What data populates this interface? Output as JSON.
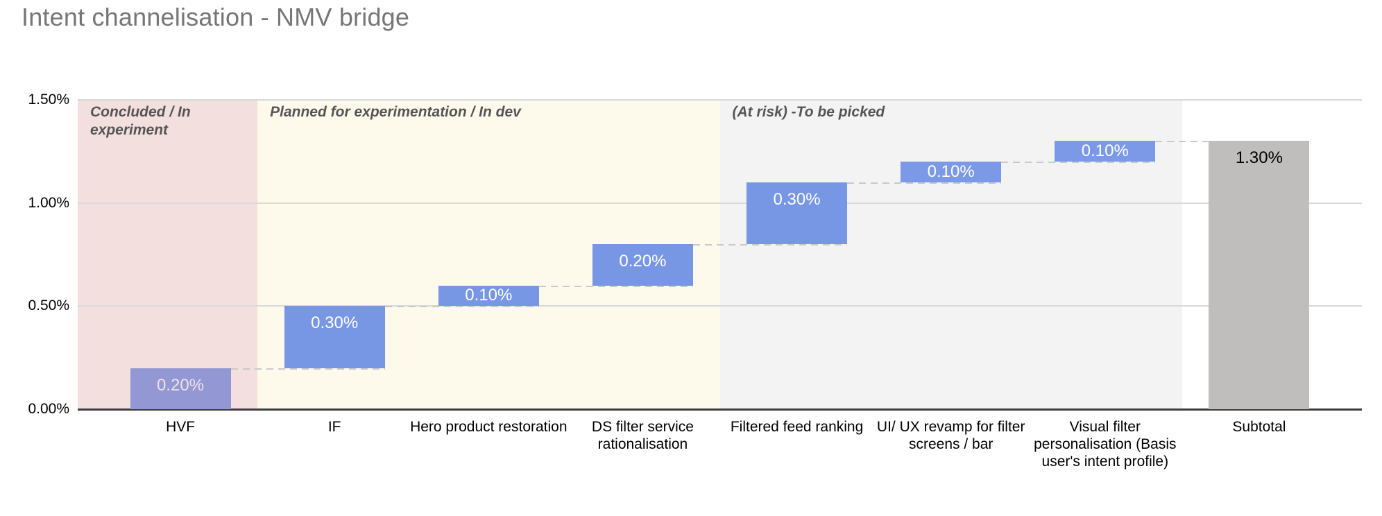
{
  "header": {
    "title": "Intent channelisation - NMV bridge"
  },
  "chart_data": {
    "type": "waterfall",
    "title": "Intent channelisation - NMV bridge",
    "legend": "none",
    "grid": true,
    "y_axis": {
      "min": 0,
      "max": 1.5,
      "unit": "percent",
      "ticks": [
        {
          "value": 0,
          "label": "0.00%"
        },
        {
          "value": 0.5,
          "label": "0.50%"
        },
        {
          "value": 1.0,
          "label": "1.00%"
        },
        {
          "value": 1.5,
          "label": "1.50%"
        }
      ]
    },
    "columns": [
      {
        "category": "HVF",
        "value": 0.2,
        "start": 0,
        "end": 0.2,
        "label": "0.20%",
        "type": "delta",
        "bar_color": "#9398d5",
        "label_color": "#efe3e8"
      },
      {
        "category": "IF",
        "value": 0.3,
        "start": 0.2,
        "end": 0.5,
        "label": "0.30%",
        "type": "delta",
        "bar_color": "#7796e4",
        "label_color": "#ffffff"
      },
      {
        "category": "Hero product restoration",
        "value": 0.1,
        "start": 0.5,
        "end": 0.6,
        "label": "0.10%",
        "type": "delta",
        "bar_color": "#7796e4",
        "label_color": "#ffffff"
      },
      {
        "category": "DS filter service rationalisation",
        "value": 0.2,
        "start": 0.6,
        "end": 0.8,
        "label": "0.20%",
        "type": "delta",
        "bar_color": "#7796e4",
        "label_color": "#ffffff"
      },
      {
        "category": "Filtered feed ranking",
        "value": 0.3,
        "start": 0.8,
        "end": 1.1,
        "label": "0.30%",
        "type": "delta",
        "bar_color": "#7796e4",
        "label_color": "#ffffff"
      },
      {
        "category": "UI/ UX revamp for filter screens / bar",
        "value": 0.1,
        "start": 1.1,
        "end": 1.2,
        "label": "0.10%",
        "type": "delta",
        "bar_color": "#7b99e6",
        "label_color": "#ffffff"
      },
      {
        "category": "Visual filter personalisation (Basis user's intent profile)",
        "value": 0.1,
        "start": 1.2,
        "end": 1.3,
        "label": "0.10%",
        "type": "delta",
        "bar_color": "#7b99e6",
        "label_color": "#ffffff"
      },
      {
        "category": "Subtotal",
        "value": 1.3,
        "start": 0,
        "end": 1.3,
        "label": "1.30%",
        "type": "total",
        "bar_color": "#bfbebd",
        "label_color": "#000000"
      }
    ],
    "bands": [
      {
        "label": "Concluded / In experiment",
        "color": "#f2dfde",
        "from_col": 0,
        "to_col": 0
      },
      {
        "label": "Planned for experimentation / In dev",
        "color": "#fdf9eb",
        "from_col": 1,
        "to_col": 3
      },
      {
        "label": "(At risk) -To be picked",
        "color": "#f3f3f3",
        "from_col": 4,
        "to_col": 6
      }
    ],
    "colors": {
      "delta_bar": "#7796e4",
      "muted_delta_bar": "#9398d5",
      "total_bar": "#bfbebd",
      "grid_line": "#d9d9d9",
      "axis_line": "#3d3d3d",
      "connector": "#c9c9c9",
      "title_text": "#767676",
      "band_label_text": "#555555",
      "axis_text": "#000000"
    }
  }
}
